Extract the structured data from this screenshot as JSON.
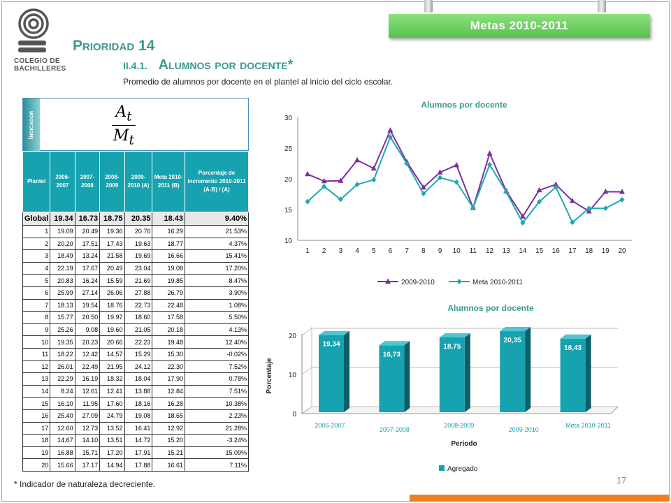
{
  "header": {
    "banner": "Metas 2010-2011",
    "priority": "Prioridad 14",
    "section_number": "II.4.1.",
    "section_title": "Alumnos por docente*",
    "description": "Promedio de alumnos por docente en el plantel al inicio del ciclo escolar."
  },
  "logo": {
    "line1": "COLEGIO DE",
    "line2": "BACHILLERES",
    "icon": "colegio-bachilleres-logo"
  },
  "indicator": {
    "label": "Indicador",
    "numerator": "A",
    "numerator_sub": "t",
    "denominator": "M",
    "denominator_sub": "t"
  },
  "table": {
    "headers": [
      "Plantel",
      "2006-2007",
      "2007-2008",
      "2008-2009",
      "2009-2010 (A)",
      "Meta 2010-2011 (B)",
      "Porcentaje de incremento 2010-2011 (A-B) / (A)"
    ],
    "global": [
      "Global",
      "19.34",
      "16.73",
      "18.75",
      "20.35",
      "18.43",
      "9.40%"
    ],
    "rows": [
      [
        "1",
        "19.09",
        "20.49",
        "19.36",
        "20.76",
        "16.29",
        "21.53%"
      ],
      [
        "2",
        "20.20",
        "17.51",
        "17.43",
        "19.63",
        "18.77",
        "4.37%"
      ],
      [
        "3",
        "18.49",
        "13.24",
        "21.58",
        "19.69",
        "16.66",
        "15.41%"
      ],
      [
        "4",
        "22.19",
        "17.67",
        "20.49",
        "23.04",
        "19.08",
        "17.20%"
      ],
      [
        "5",
        "20.83",
        "16.24",
        "15.59",
        "21.69",
        "19.85",
        "8.47%"
      ],
      [
        "6",
        "25.99",
        "27.14",
        "26.06",
        "27.88",
        "26.79",
        "3.90%"
      ],
      [
        "7",
        "18.13",
        "19.54",
        "18.76",
        "22.73",
        "22.48",
        "1.08%"
      ],
      [
        "8",
        "15.77",
        "20.50",
        "19.97",
        "18.60",
        "17.58",
        "5.50%"
      ],
      [
        "9",
        "25.26",
        "9.08",
        "19.60",
        "21.05",
        "20.18",
        "4.13%"
      ],
      [
        "10",
        "19.35",
        "20.23",
        "20.66",
        "22.23",
        "19.48",
        "12.40%"
      ],
      [
        "11",
        "18.22",
        "12.42",
        "14.57",
        "15.29",
        "15.30",
        "-0.02%"
      ],
      [
        "12",
        "26.01",
        "22.49",
        "21.95",
        "24.12",
        "22.30",
        "7.52%"
      ],
      [
        "13",
        "22.29",
        "16.19",
        "18.32",
        "18.04",
        "17.90",
        "0.78%"
      ],
      [
        "14",
        "8.24",
        "12.61",
        "12.41",
        "13.88",
        "12.84",
        "7.51%"
      ],
      [
        "15",
        "16.10",
        "11.95",
        "17.60",
        "18.16",
        "16.28",
        "10.38%"
      ],
      [
        "16",
        "25.40",
        "27.09",
        "24.79",
        "19.08",
        "18.65",
        "2.23%"
      ],
      [
        "17",
        "12.60",
        "12.73",
        "13.52",
        "16.41",
        "12.92",
        "21.28%"
      ],
      [
        "18",
        "14.67",
        "14.10",
        "13.51",
        "14.72",
        "15.20",
        "-3.24%"
      ],
      [
        "19",
        "16.88",
        "15.71",
        "17.20",
        "17.91",
        "15.21",
        "15.09%"
      ],
      [
        "20",
        "15.66",
        "17.17",
        "14.94",
        "17.88",
        "16.61",
        "7.11%"
      ]
    ]
  },
  "footnote": "* Indicador de naturaleza decreciente.",
  "page_number": "17",
  "colors": {
    "accent": "#17a2b0",
    "line1": "#7b2fa0",
    "line2": "#1fa8b0",
    "banner": "#5ac44e",
    "orange": "#f07d1e"
  },
  "chart_data": [
    {
      "type": "line",
      "title": "Alumnos por docente",
      "x": [
        "1",
        "2",
        "3",
        "4",
        "5",
        "6",
        "7",
        "8",
        "9",
        "10",
        "11",
        "12",
        "13",
        "14",
        "15",
        "16",
        "17",
        "18",
        "19",
        "20"
      ],
      "ylim": [
        10,
        30
      ],
      "yticks": [
        10,
        15,
        20,
        25,
        30
      ],
      "grid": false,
      "legend": "bottom",
      "series": [
        {
          "name": "2009-2010",
          "marker": "triangle",
          "values": [
            20.76,
            19.63,
            19.69,
            23.04,
            21.69,
            27.88,
            22.73,
            18.6,
            21.05,
            22.23,
            15.29,
            24.12,
            18.04,
            13.88,
            18.16,
            19.08,
            16.41,
            14.72,
            17.91,
            17.88
          ]
        },
        {
          "name": "Meta 2010-2011",
          "marker": "diamond",
          "values": [
            16.29,
            18.77,
            16.66,
            19.08,
            19.85,
            26.79,
            22.48,
            17.58,
            20.18,
            19.48,
            15.3,
            22.3,
            17.9,
            12.84,
            16.28,
            18.65,
            12.92,
            15.2,
            15.21,
            16.61
          ]
        }
      ]
    },
    {
      "type": "bar",
      "title": "Alumnos por docente",
      "categories": [
        "2006-2007",
        "2007-2008",
        "2008-2009",
        "2009-2010",
        "Meta 2010-2011"
      ],
      "values": [
        19.34,
        16.73,
        18.75,
        20.35,
        18.43
      ],
      "data_labels": [
        "19,34",
        "16,73",
        "18,75",
        "20,35",
        "18,43"
      ],
      "xlabel": "Periodo",
      "ylabel": "Porcentaje",
      "ylim": [
        0,
        20
      ],
      "yticks": [
        0,
        10,
        20
      ],
      "legend": "bottom",
      "series_name": "Agregado"
    }
  ]
}
